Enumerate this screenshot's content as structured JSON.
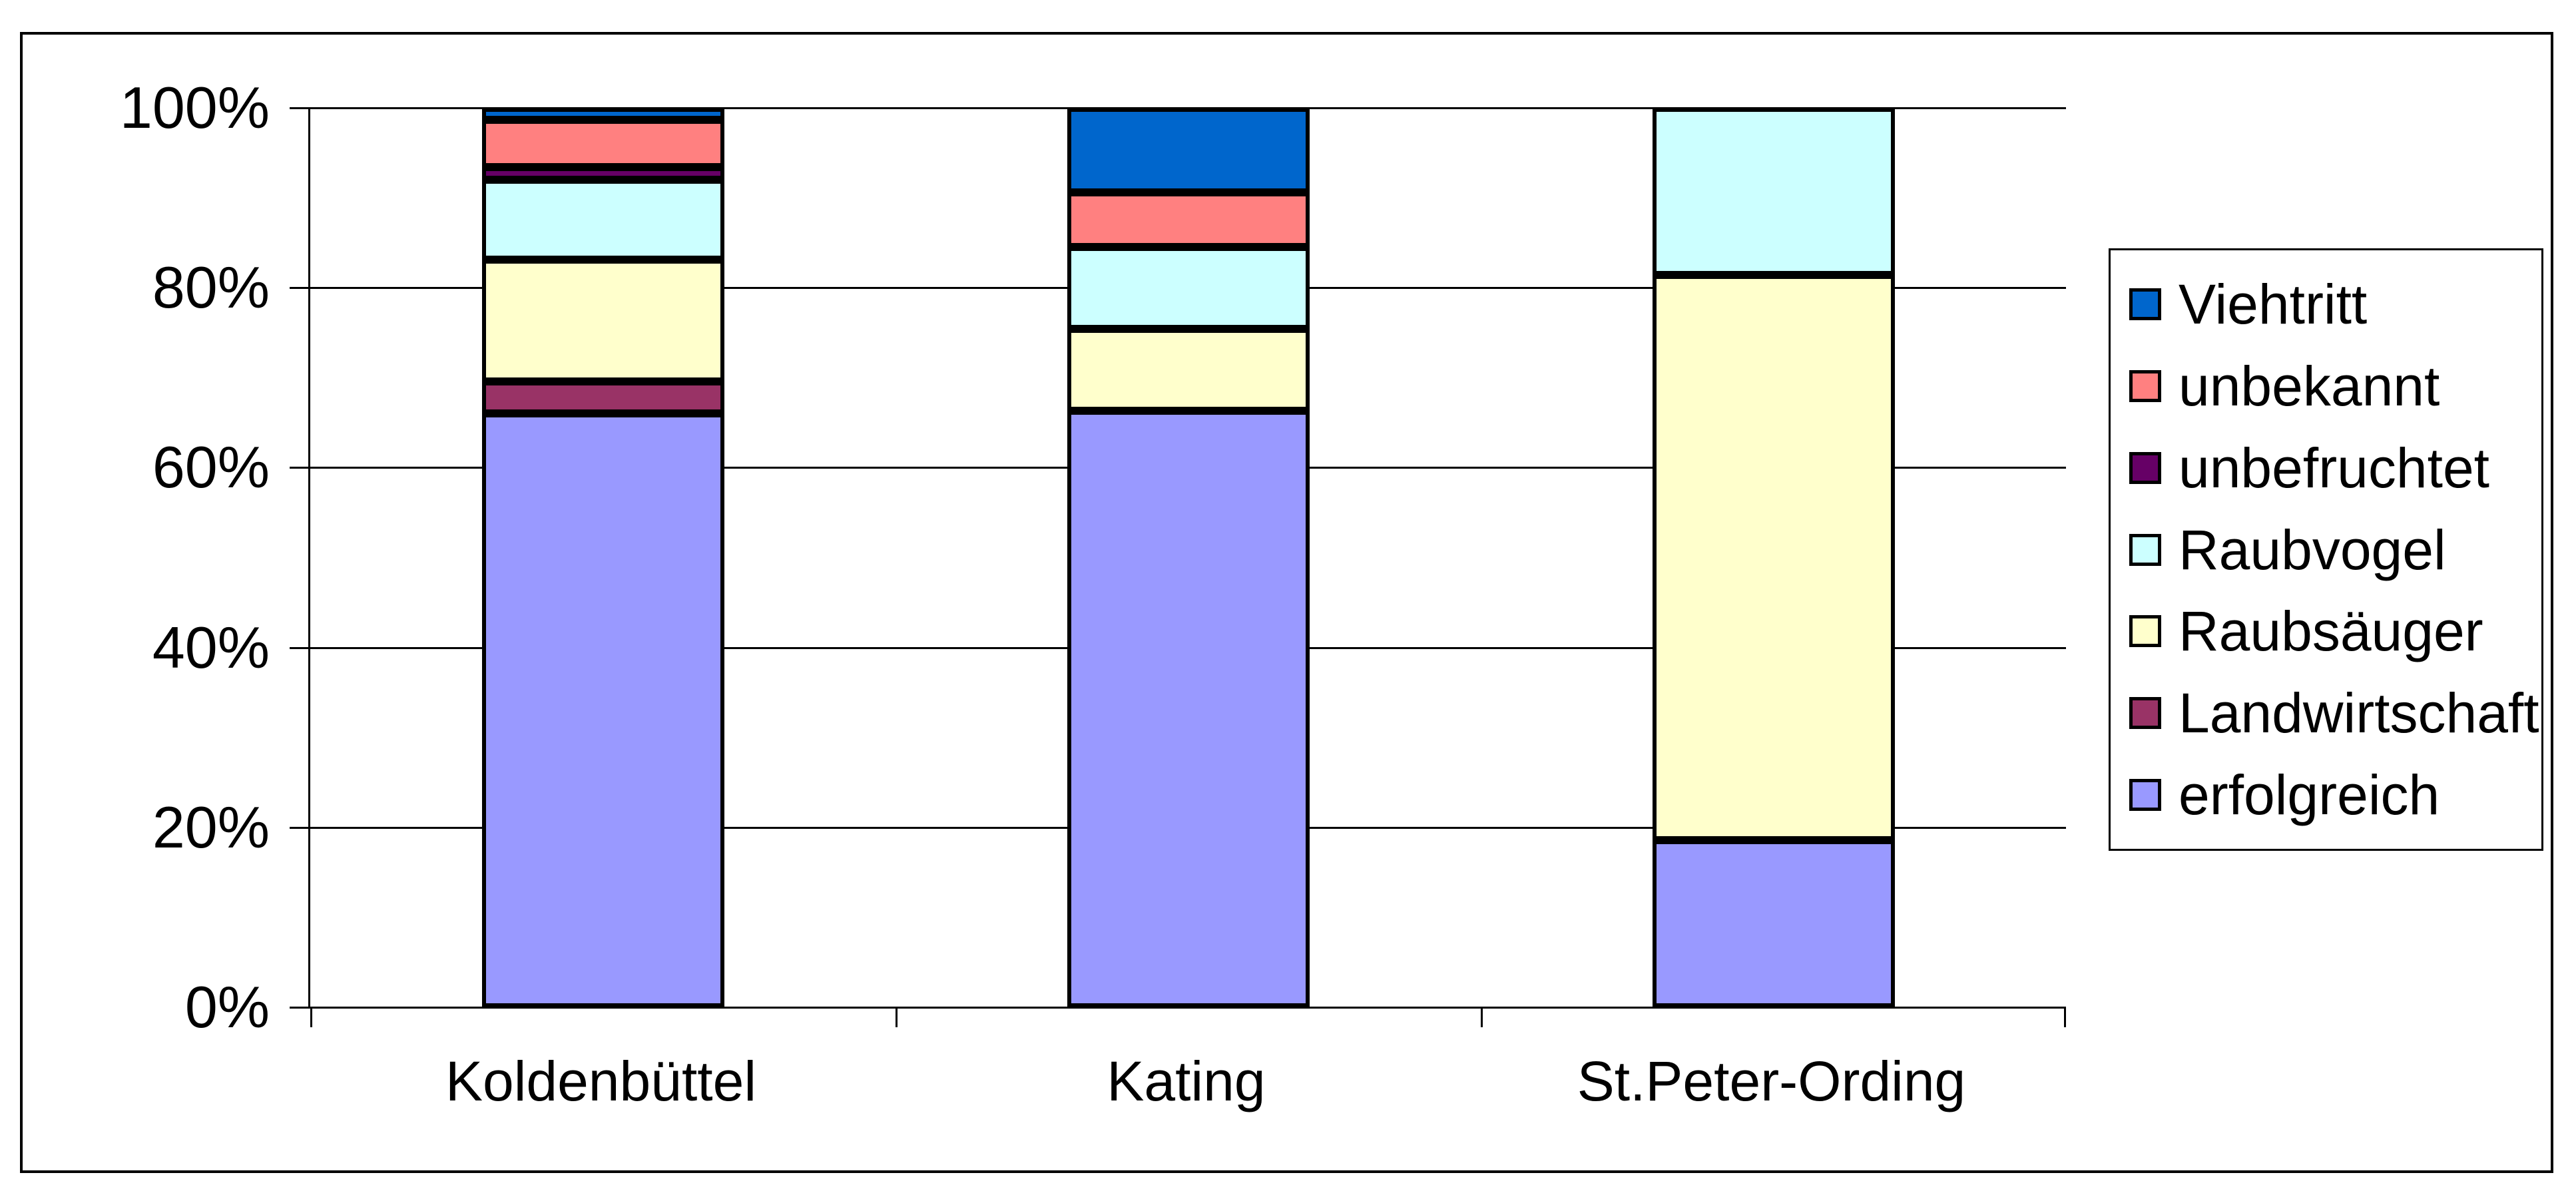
{
  "chart_data": {
    "type": "bar",
    "variant": "stacked-100-percent",
    "title": "",
    "categories": [
      "Koldenbüttel",
      "Kating",
      "St.Peter-Ording"
    ],
    "series": [
      {
        "name": "Viehtritt",
        "color": "#0066CC",
        "values": [
          1.3,
          9.4,
          0
        ]
      },
      {
        "name": "unbekannt",
        "color": "#FF8080",
        "values": [
          5.3,
          6.1,
          0
        ]
      },
      {
        "name": "unbefruchtet",
        "color": "#660066",
        "values": [
          1.4,
          0,
          0
        ]
      },
      {
        "name": "Raubvogel",
        "color": "#CCFFFF",
        "values": [
          8.9,
          9.1,
          18.6
        ]
      },
      {
        "name": "Raubsäuger",
        "color": "#FFFFCC",
        "values": [
          13.5,
          9.1,
          62.8
        ]
      },
      {
        "name": "Landwirtschaft",
        "color": "#993366",
        "values": [
          3.6,
          0,
          0
        ]
      },
      {
        "name": "erfolgreich",
        "color": "#9999FF",
        "values": [
          66.0,
          66.3,
          18.6
        ]
      }
    ],
    "y_axis": {
      "ticks": [
        "100%",
        "80%",
        "60%",
        "40%",
        "20%",
        "0%"
      ],
      "min": 0,
      "max": 100,
      "unit": "%"
    },
    "grid": "horizontal-on",
    "legend_position": "right",
    "stacking": "top-to-bottom-in-series-order"
  },
  "colors": {
    "background": "#FFFFFF",
    "border": "#000000",
    "gridline": "#000000",
    "text": "#000000"
  }
}
